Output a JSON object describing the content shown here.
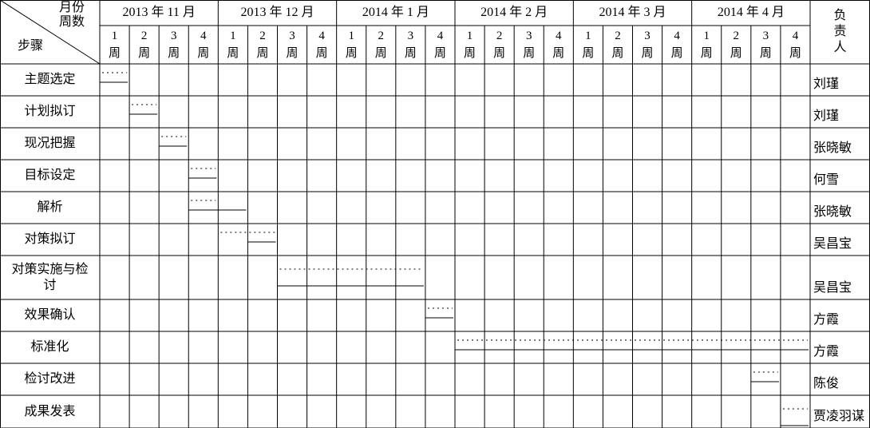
{
  "header": {
    "corner_top": "月份",
    "corner_mid": "周数",
    "corner_bottom": "步骤",
    "months": [
      "2013 年 11 月",
      "2013 年 12 月",
      "2014 年 1 月",
      "2014 年 2 月",
      "2014 年 3 月",
      "2014 年 4 月"
    ],
    "weeks": [
      1,
      2,
      3,
      4,
      1,
      2,
      3,
      4,
      1,
      2,
      3,
      4,
      1,
      2,
      3,
      4,
      1,
      2,
      3,
      4,
      1,
      2,
      3,
      4
    ],
    "week_unit": "周",
    "owner": "负责人"
  },
  "tasks": [
    {
      "step": "主题选定",
      "owner": "刘瑾",
      "plan": [
        0,
        1
      ],
      "actual": [
        0,
        1
      ]
    },
    {
      "step": "计划拟订",
      "owner": "刘瑾",
      "plan": [
        1,
        2
      ],
      "actual": [
        1,
        2
      ]
    },
    {
      "step": "现况把握",
      "owner": "张晓敏",
      "plan": [
        2,
        3
      ],
      "actual": [
        2,
        3
      ]
    },
    {
      "step": "目标设定",
      "owner": "何雪",
      "plan": [
        3,
        4
      ],
      "actual": [
        3,
        4
      ]
    },
    {
      "step": "解析",
      "owner": "张晓敏",
      "plan": [
        3,
        4
      ],
      "actual": [
        3,
        5
      ]
    },
    {
      "step": "对策拟订",
      "owner": "吴昌宝",
      "plan": [
        4,
        6
      ],
      "actual": [
        5,
        6
      ]
    },
    {
      "step": "对策实施与检讨",
      "owner": "吴昌宝",
      "plan": [
        6,
        11
      ],
      "actual": [
        6,
        11
      ]
    },
    {
      "step": "效果确认",
      "owner": "方霞",
      "plan": [
        11,
        12
      ],
      "actual": [
        11,
        12
      ]
    },
    {
      "step": "标准化",
      "owner": "方霞",
      "plan": [
        12,
        24
      ],
      "actual": [
        12,
        24
      ]
    },
    {
      "step": "检讨改进",
      "owner": "陈俊",
      "plan": [
        22,
        23
      ],
      "actual": [
        22,
        23
      ]
    },
    {
      "step": "成果发表",
      "owner": "贾凌羽谋",
      "plan": [
        23,
        24
      ],
      "actual": [
        23,
        24
      ]
    }
  ]
}
